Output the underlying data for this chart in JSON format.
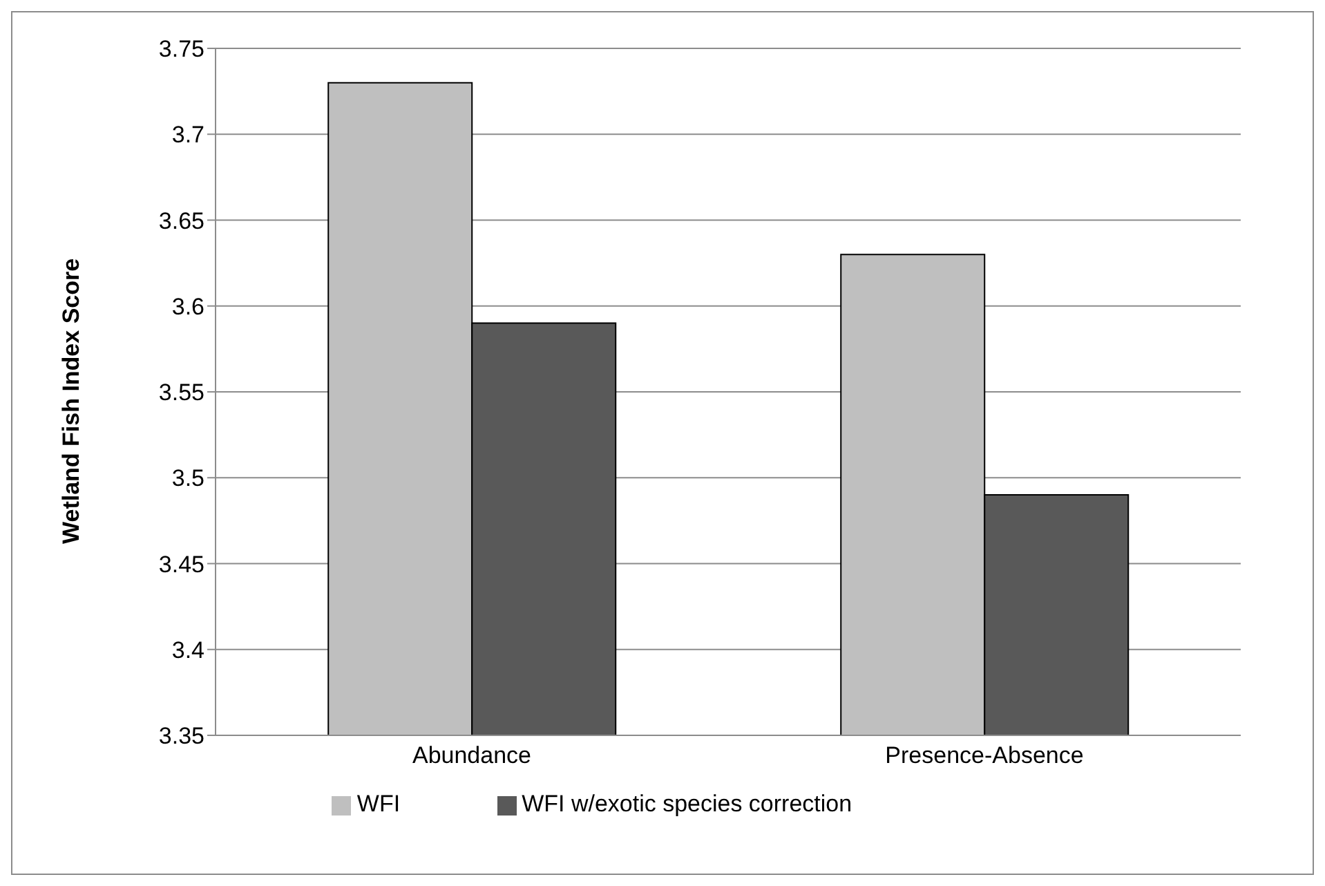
{
  "chart_data": {
    "type": "bar",
    "ylabel": "Wetland Fish Index Score",
    "categories": [
      "Abundance",
      "Presence-Absence"
    ],
    "series": [
      {
        "name": "WFI",
        "color": "#bfbfbf",
        "values": [
          3.73,
          3.63
        ]
      },
      {
        "name": "WFI w/exotic species correction",
        "color": "#595959",
        "values": [
          3.59,
          3.49
        ]
      }
    ],
    "ylim": [
      3.35,
      3.75
    ],
    "yticks": [
      3.35,
      3.4,
      3.45,
      3.5,
      3.55,
      3.6,
      3.65,
      3.7,
      3.75
    ],
    "grid": "y",
    "legend": "bottom"
  }
}
